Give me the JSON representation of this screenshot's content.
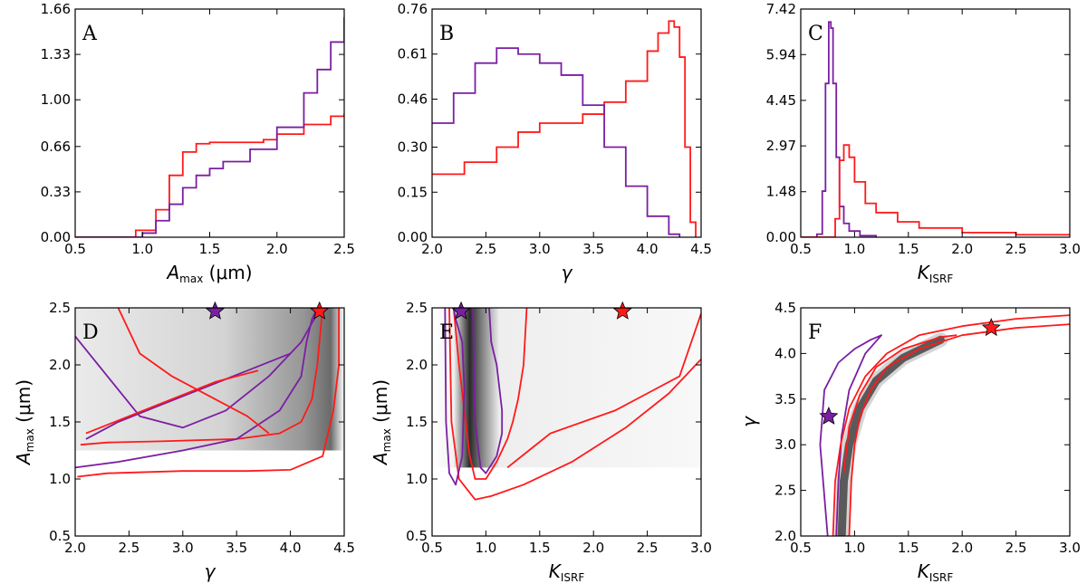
{
  "colors": {
    "red": "#ff1a1a",
    "purple": "#7a1fa2"
  },
  "chart_data": [
    {
      "id": "A",
      "type": "line",
      "letter": "A",
      "xlabel": {
        "main": "A",
        "sub": "max",
        "rest": " (μm)"
      },
      "xlim": [
        0.5,
        2.5
      ],
      "ylim": [
        0,
        1.66
      ],
      "xticks": [
        "0.5",
        "1.0",
        "1.5",
        "2.0",
        "2.5"
      ],
      "yticks": [
        "0.00",
        "0.33",
        "0.66",
        "1.00",
        "1.33",
        "1.66"
      ],
      "series": [
        {
          "color": "red",
          "x": [
            0.5,
            0.8,
            0.95,
            1.1,
            1.2,
            1.3,
            1.4,
            1.5,
            1.7,
            1.9,
            2.0,
            2.2,
            2.4,
            2.5
          ],
          "y": [
            0,
            0,
            0.05,
            0.2,
            0.45,
            0.62,
            0.68,
            0.69,
            0.69,
            0.71,
            0.75,
            0.82,
            0.88,
            0.9
          ]
        },
        {
          "color": "purple",
          "x": [
            0.5,
            0.9,
            1.0,
            1.1,
            1.2,
            1.3,
            1.4,
            1.5,
            1.6,
            1.8,
            2.0,
            2.2,
            2.3,
            2.4,
            2.5
          ],
          "y": [
            0,
            0,
            0.03,
            0.12,
            0.24,
            0.36,
            0.45,
            0.5,
            0.55,
            0.64,
            0.8,
            1.05,
            1.22,
            1.42,
            1.6
          ]
        }
      ]
    },
    {
      "id": "B",
      "type": "line",
      "letter": "B",
      "xlabel": {
        "main": "γ",
        "sub": "",
        "rest": ""
      },
      "xlim": [
        2.0,
        4.5
      ],
      "ylim": [
        0,
        0.76
      ],
      "xticks": [
        "2.0",
        "2.5",
        "3.0",
        "3.5",
        "4.0",
        "4.5"
      ],
      "yticks": [
        "0.00",
        "0.15",
        "0.30",
        "0.46",
        "0.61",
        "0.76"
      ],
      "series": [
        {
          "color": "red",
          "x": [
            2.0,
            2.3,
            2.6,
            2.8,
            3.0,
            3.2,
            3.4,
            3.6,
            3.8,
            4.0,
            4.1,
            4.2,
            4.25,
            4.3,
            4.35,
            4.4,
            4.45
          ],
          "y": [
            0.21,
            0.25,
            0.3,
            0.35,
            0.38,
            0.38,
            0.41,
            0.45,
            0.52,
            0.62,
            0.68,
            0.72,
            0.7,
            0.6,
            0.3,
            0.05,
            0
          ]
        },
        {
          "color": "purple",
          "x": [
            2.0,
            2.2,
            2.4,
            2.6,
            2.7,
            2.8,
            3.0,
            3.2,
            3.4,
            3.6,
            3.8,
            4.0,
            4.2,
            4.3
          ],
          "y": [
            0.38,
            0.48,
            0.58,
            0.63,
            0.63,
            0.61,
            0.58,
            0.54,
            0.44,
            0.3,
            0.17,
            0.07,
            0.01,
            0
          ]
        }
      ]
    },
    {
      "id": "C",
      "type": "line",
      "letter": "C",
      "xlabel": {
        "main": "K",
        "sub": "ISRF",
        "rest": ""
      },
      "xlim": [
        0.5,
        3.0
      ],
      "ylim": [
        0,
        7.42
      ],
      "xticks": [
        "0.5",
        "1.0",
        "1.5",
        "2.0",
        "2.5",
        "3.0"
      ],
      "yticks": [
        "0.00",
        "1.48",
        "2.97",
        "4.45",
        "5.94",
        "7.42"
      ],
      "series": [
        {
          "color": "purple",
          "x": [
            0.5,
            0.65,
            0.7,
            0.73,
            0.76,
            0.78,
            0.8,
            0.83,
            0.86,
            0.9,
            0.95,
            1.05,
            1.2
          ],
          "y": [
            0,
            0.1,
            1.5,
            5.0,
            7.0,
            6.8,
            5.0,
            2.6,
            1.0,
            0.45,
            0.2,
            0.05,
            0
          ]
        },
        {
          "color": "red",
          "x": [
            0.5,
            0.78,
            0.82,
            0.86,
            0.9,
            0.95,
            1.0,
            1.1,
            1.2,
            1.4,
            1.6,
            2.0,
            2.5,
            3.0
          ],
          "y": [
            0,
            0,
            0.6,
            2.5,
            3.0,
            2.6,
            1.8,
            1.1,
            0.8,
            0.5,
            0.3,
            0.15,
            0.08,
            0.05
          ]
        }
      ]
    },
    {
      "id": "D",
      "type": "heatmap",
      "letter": "D",
      "xlabel": {
        "main": "γ",
        "sub": "",
        "rest": ""
      },
      "ylabel": {
        "main": "A",
        "sub": "max",
        "rest": " (μm)"
      },
      "xlim": [
        2.0,
        4.5
      ],
      "ylim": [
        0.5,
        2.5
      ],
      "xticks": [
        "2.0",
        "2.5",
        "3.0",
        "3.5",
        "4.0",
        "4.5"
      ],
      "yticks": [
        "0.5",
        "1.0",
        "1.5",
        "2.0",
        "2.5"
      ],
      "stars": [
        {
          "color": "purple",
          "x": 3.3,
          "y": 2.47
        },
        {
          "color": "red",
          "x": 4.27,
          "y": 2.47
        }
      ],
      "contours": [
        {
          "color": "red",
          "x": [
            2.02,
            2.3,
            3.0,
            3.6,
            4.0,
            4.3,
            4.4,
            4.45,
            4.45
          ],
          "y": [
            1.02,
            1.05,
            1.07,
            1.07,
            1.08,
            1.2,
            1.6,
            2.0,
            2.5
          ]
        },
        {
          "color": "red",
          "x": [
            2.05,
            2.3,
            2.8,
            3.5,
            3.9,
            4.1,
            4.2,
            4.25,
            4.3
          ],
          "y": [
            1.3,
            1.32,
            1.33,
            1.35,
            1.4,
            1.5,
            1.7,
            2.0,
            2.5
          ]
        },
        {
          "color": "purple",
          "x": [
            2.0,
            2.4,
            3.0,
            3.5,
            3.9,
            4.1,
            4.15,
            4.2,
            4.25
          ],
          "y": [
            1.1,
            1.15,
            1.25,
            1.35,
            1.6,
            1.9,
            2.2,
            2.4,
            2.5
          ]
        },
        {
          "color": "purple",
          "x": [
            2.0,
            2.3,
            2.6,
            3.0,
            3.4,
            3.8,
            4.1,
            4.25
          ],
          "y": [
            2.25,
            1.9,
            1.55,
            1.45,
            1.6,
            1.9,
            2.2,
            2.45
          ]
        },
        {
          "color": "purple",
          "x": [
            2.1,
            2.4,
            2.8,
            3.2,
            3.6,
            4.0
          ],
          "y": [
            1.35,
            1.5,
            1.65,
            1.8,
            1.95,
            2.1
          ]
        },
        {
          "color": "red",
          "x": [
            2.4,
            2.6,
            2.9,
            3.3,
            3.6,
            3.8
          ],
          "y": [
            2.5,
            2.1,
            1.9,
            1.7,
            1.55,
            1.4
          ]
        },
        {
          "color": "red",
          "x": [
            2.1,
            2.5,
            2.9,
            3.3,
            3.7
          ],
          "y": [
            1.4,
            1.55,
            1.7,
            1.85,
            1.95
          ]
        }
      ]
    },
    {
      "id": "E",
      "type": "heatmap",
      "letter": "E",
      "xlabel": {
        "main": "K",
        "sub": "ISRF",
        "rest": ""
      },
      "ylabel": {
        "main": "A",
        "sub": "max",
        "rest": " (μm)"
      },
      "xlim": [
        0.5,
        3.0
      ],
      "ylim": [
        0.5,
        2.5
      ],
      "xticks": [
        "0.5",
        "1.0",
        "1.5",
        "2.0",
        "2.5",
        "3.0"
      ],
      "yticks": [
        "0.5",
        "1.0",
        "1.5",
        "2.0",
        "2.5"
      ],
      "stars": [
        {
          "color": "purple",
          "x": 0.77,
          "y": 2.47
        },
        {
          "color": "red",
          "x": 2.27,
          "y": 2.47
        }
      ],
      "contours": [
        {
          "color": "red",
          "x": [
            0.66,
            0.68,
            0.75,
            0.9,
            1.05,
            1.35,
            1.8,
            2.3,
            2.7,
            3.0
          ],
          "y": [
            2.5,
            1.5,
            1.0,
            0.82,
            0.85,
            0.95,
            1.15,
            1.45,
            1.75,
            2.05
          ]
        },
        {
          "color": "red",
          "x": [
            1.38,
            1.35,
            1.3,
            1.25,
            1.2,
            1.1,
            1.0,
            0.9,
            0.85,
            0.8,
            0.75,
            0.7
          ],
          "y": [
            2.5,
            2.0,
            1.7,
            1.5,
            1.35,
            1.15,
            1.0,
            1.0,
            1.2,
            1.6,
            2.0,
            2.5
          ]
        },
        {
          "color": "purple",
          "x": [
            0.62,
            0.63,
            0.66,
            0.72,
            0.78,
            0.8,
            0.78,
            0.72,
            0.7
          ],
          "y": [
            2.5,
            1.5,
            1.05,
            0.95,
            1.2,
            1.8,
            2.2,
            2.4,
            2.5
          ]
        },
        {
          "color": "purple",
          "x": [
            1.03,
            1.05,
            1.1,
            1.15,
            1.15,
            1.1,
            1.0,
            0.95,
            0.9,
            0.88
          ],
          "y": [
            2.5,
            2.2,
            2.0,
            1.6,
            1.4,
            1.2,
            1.05,
            1.1,
            1.5,
            2.5
          ]
        },
        {
          "color": "red",
          "x": [
            1.2,
            1.4,
            1.6,
            1.9,
            2.2,
            2.5,
            2.8,
            3.0
          ],
          "y": [
            1.1,
            1.25,
            1.4,
            1.5,
            1.6,
            1.75,
            1.9,
            2.45
          ]
        }
      ]
    },
    {
      "id": "F",
      "type": "heatmap",
      "letter": "F",
      "xlabel": {
        "main": "K",
        "sub": "ISRF",
        "rest": ""
      },
      "ylabel": {
        "main": "γ",
        "sub": "",
        "rest": ""
      },
      "xlim": [
        0.5,
        3.0
      ],
      "ylim": [
        2.0,
        4.5
      ],
      "xticks": [
        "0.5",
        "1.0",
        "1.5",
        "2.0",
        "2.5",
        "3.0"
      ],
      "yticks": [
        "2.0",
        "2.5",
        "3.0",
        "3.5",
        "4.0",
        "4.5"
      ],
      "stars": [
        {
          "color": "purple",
          "x": 0.76,
          "y": 3.31
        },
        {
          "color": "red",
          "x": 2.27,
          "y": 4.28
        }
      ],
      "contours": [
        {
          "color": "purple",
          "x": [
            0.75,
            0.68,
            0.72,
            0.85,
            1.0,
            1.15,
            1.25,
            1.1,
            0.95,
            0.88,
            0.85,
            0.83
          ],
          "y": [
            2.0,
            3.0,
            3.6,
            3.9,
            4.05,
            4.15,
            4.2,
            4.0,
            3.6,
            3.1,
            2.6,
            2.0
          ]
        },
        {
          "color": "red",
          "x": [
            0.8,
            0.82,
            0.87,
            0.95,
            1.1,
            1.3,
            1.6,
            2.0,
            2.5,
            3.0
          ],
          "y": [
            2.0,
            2.6,
            3.0,
            3.4,
            3.75,
            4.0,
            4.2,
            4.3,
            4.38,
            4.42
          ]
        },
        {
          "color": "red",
          "x": [
            0.95,
            0.97,
            1.0,
            1.05,
            1.15,
            1.3,
            1.6,
            2.0,
            2.5,
            3.0
          ],
          "y": [
            2.0,
            2.6,
            3.0,
            3.3,
            3.6,
            3.85,
            4.05,
            4.2,
            4.28,
            4.32
          ]
        },
        {
          "color": "red",
          "x": [
            0.9,
            0.95,
            1.05,
            1.2,
            1.45,
            1.8,
            1.95
          ],
          "y": [
            2.7,
            3.2,
            3.55,
            3.85,
            4.05,
            4.18,
            4.2
          ]
        }
      ]
    }
  ]
}
